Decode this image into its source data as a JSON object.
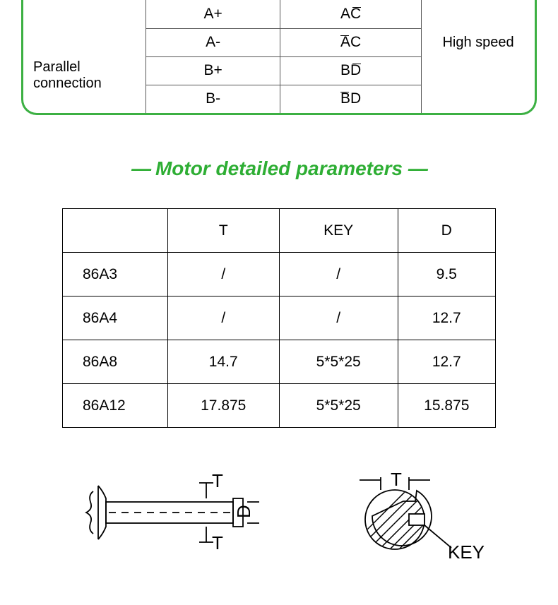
{
  "connection_box": {
    "label": "Parallel connection",
    "note": "High speed",
    "rows": [
      {
        "left": "A+",
        "right": "AC",
        "overline": "C"
      },
      {
        "left": "A-",
        "right": "AC",
        "overline": "A"
      },
      {
        "left": "B+",
        "right": "BD",
        "overline": "D"
      },
      {
        "left": "B-",
        "right": "BD",
        "overline": "B"
      }
    ]
  },
  "section_title": "Motor detailed parameters",
  "dash": "—",
  "params": {
    "headers": {
      "t": "T",
      "key": "KEY",
      "d": "D"
    },
    "rows": [
      {
        "model": "86A3",
        "t": "/",
        "key": "/",
        "d": "9.5"
      },
      {
        "model": "86A4",
        "t": "/",
        "key": "/",
        "d": "12.7"
      },
      {
        "model": "86A8",
        "t": "14.7",
        "key": "5*5*25",
        "d": "12.7"
      },
      {
        "model": "86A12",
        "t": "17.875",
        "key": "5*5*25",
        "d": "15.875"
      }
    ]
  },
  "diagrams": {
    "shaft": {
      "label_T": "T",
      "label_D": "D"
    },
    "key": {
      "label_T": "T",
      "label_KEY": "KEY"
    }
  },
  "colors": {
    "accent": "#3cb043",
    "text_accent": "#2eae34",
    "border": "#000000",
    "inner_border": "#555555",
    "bg": "#ffffff"
  }
}
